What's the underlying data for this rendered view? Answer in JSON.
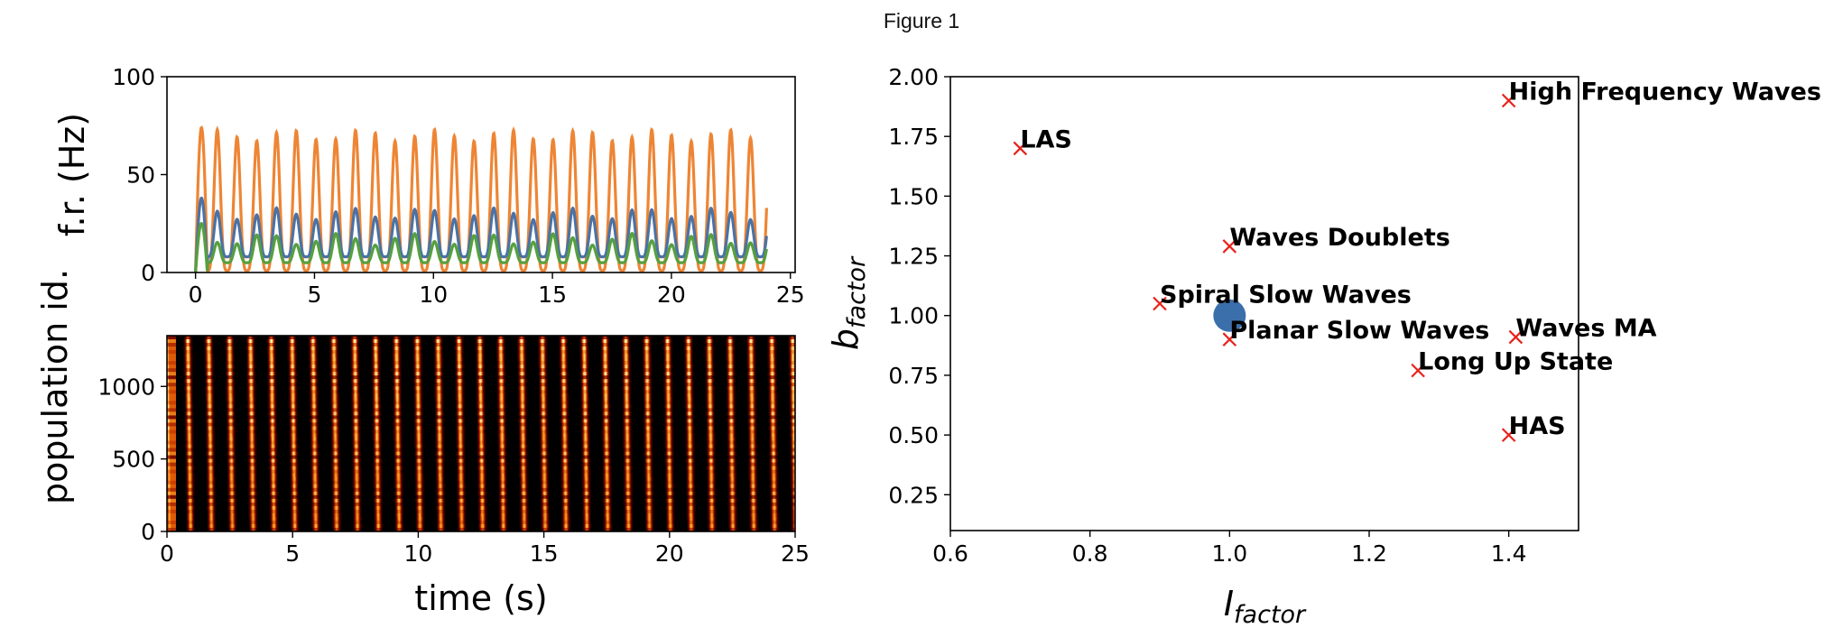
{
  "window": {
    "title": "Figure 1"
  },
  "chart_data": [
    {
      "type": "line",
      "panel": "top-left",
      "title": "",
      "xlabel": "",
      "ylabel": "f.r. (Hz)",
      "xlim": [
        -1.2,
        25.2
      ],
      "ylim": [
        0,
        100
      ],
      "xticks": [
        "0",
        "5",
        "10",
        "15",
        "20",
        "25"
      ],
      "yticks": [
        "0",
        "50",
        "100"
      ],
      "grid": false,
      "t_end": 24,
      "osc_period": 0.83,
      "series": [
        {
          "color": "#ee8534",
          "peak": 70,
          "trough": 1,
          "first_peak": 74
        },
        {
          "color": "#4a72a6",
          "peak": 30,
          "trough": 8,
          "first_peak": 38
        },
        {
          "color": "#56a03e",
          "peak": 17,
          "trough": 5,
          "first_peak": 25
        }
      ]
    },
    {
      "type": "heatmap",
      "panel": "bottom-left",
      "title": "",
      "xlabel": "time (s)",
      "ylabel": "population id.",
      "xlim": [
        0,
        25
      ],
      "ylim": [
        0,
        1350
      ],
      "xticks": [
        "0",
        "5",
        "10",
        "15",
        "20",
        "25"
      ],
      "yticks": [
        "0",
        "500",
        "1000"
      ],
      "colormap": "hot",
      "osc_period": 0.83
    },
    {
      "type": "scatter",
      "panel": "right",
      "title": "",
      "xlabel": "I",
      "xlabel_sub": "factor",
      "ylabel": "b",
      "ylabel_sub": "factor",
      "xlim": [
        0.6,
        1.5
      ],
      "ylim": [
        0.1,
        2.0
      ],
      "xticks": [
        "0.6",
        "0.8",
        "1.0",
        "1.2",
        "1.4"
      ],
      "yticks": [
        "0.25",
        "0.50",
        "0.75",
        "1.00",
        "1.25",
        "1.50",
        "1.75",
        "2.00"
      ],
      "grid": false,
      "marker_color": "#e8221b",
      "current_point": {
        "x": 1.0,
        "y": 1.0,
        "color": "#3a6fab"
      },
      "points": [
        {
          "x": 0.7,
          "y": 1.7,
          "label": "LAS"
        },
        {
          "x": 1.4,
          "y": 1.9,
          "label": "High Frequency Waves"
        },
        {
          "x": 1.0,
          "y": 1.29,
          "label": "Waves Doublets"
        },
        {
          "x": 0.9,
          "y": 1.05,
          "label": "Spiral Slow Waves"
        },
        {
          "x": 1.0,
          "y": 0.9,
          "label": "Planar Slow Waves"
        },
        {
          "x": 1.41,
          "y": 0.91,
          "label": "Waves MA"
        },
        {
          "x": 1.27,
          "y": 0.77,
          "label": "Long Up State"
        },
        {
          "x": 1.4,
          "y": 0.5,
          "label": "HAS"
        }
      ]
    }
  ]
}
